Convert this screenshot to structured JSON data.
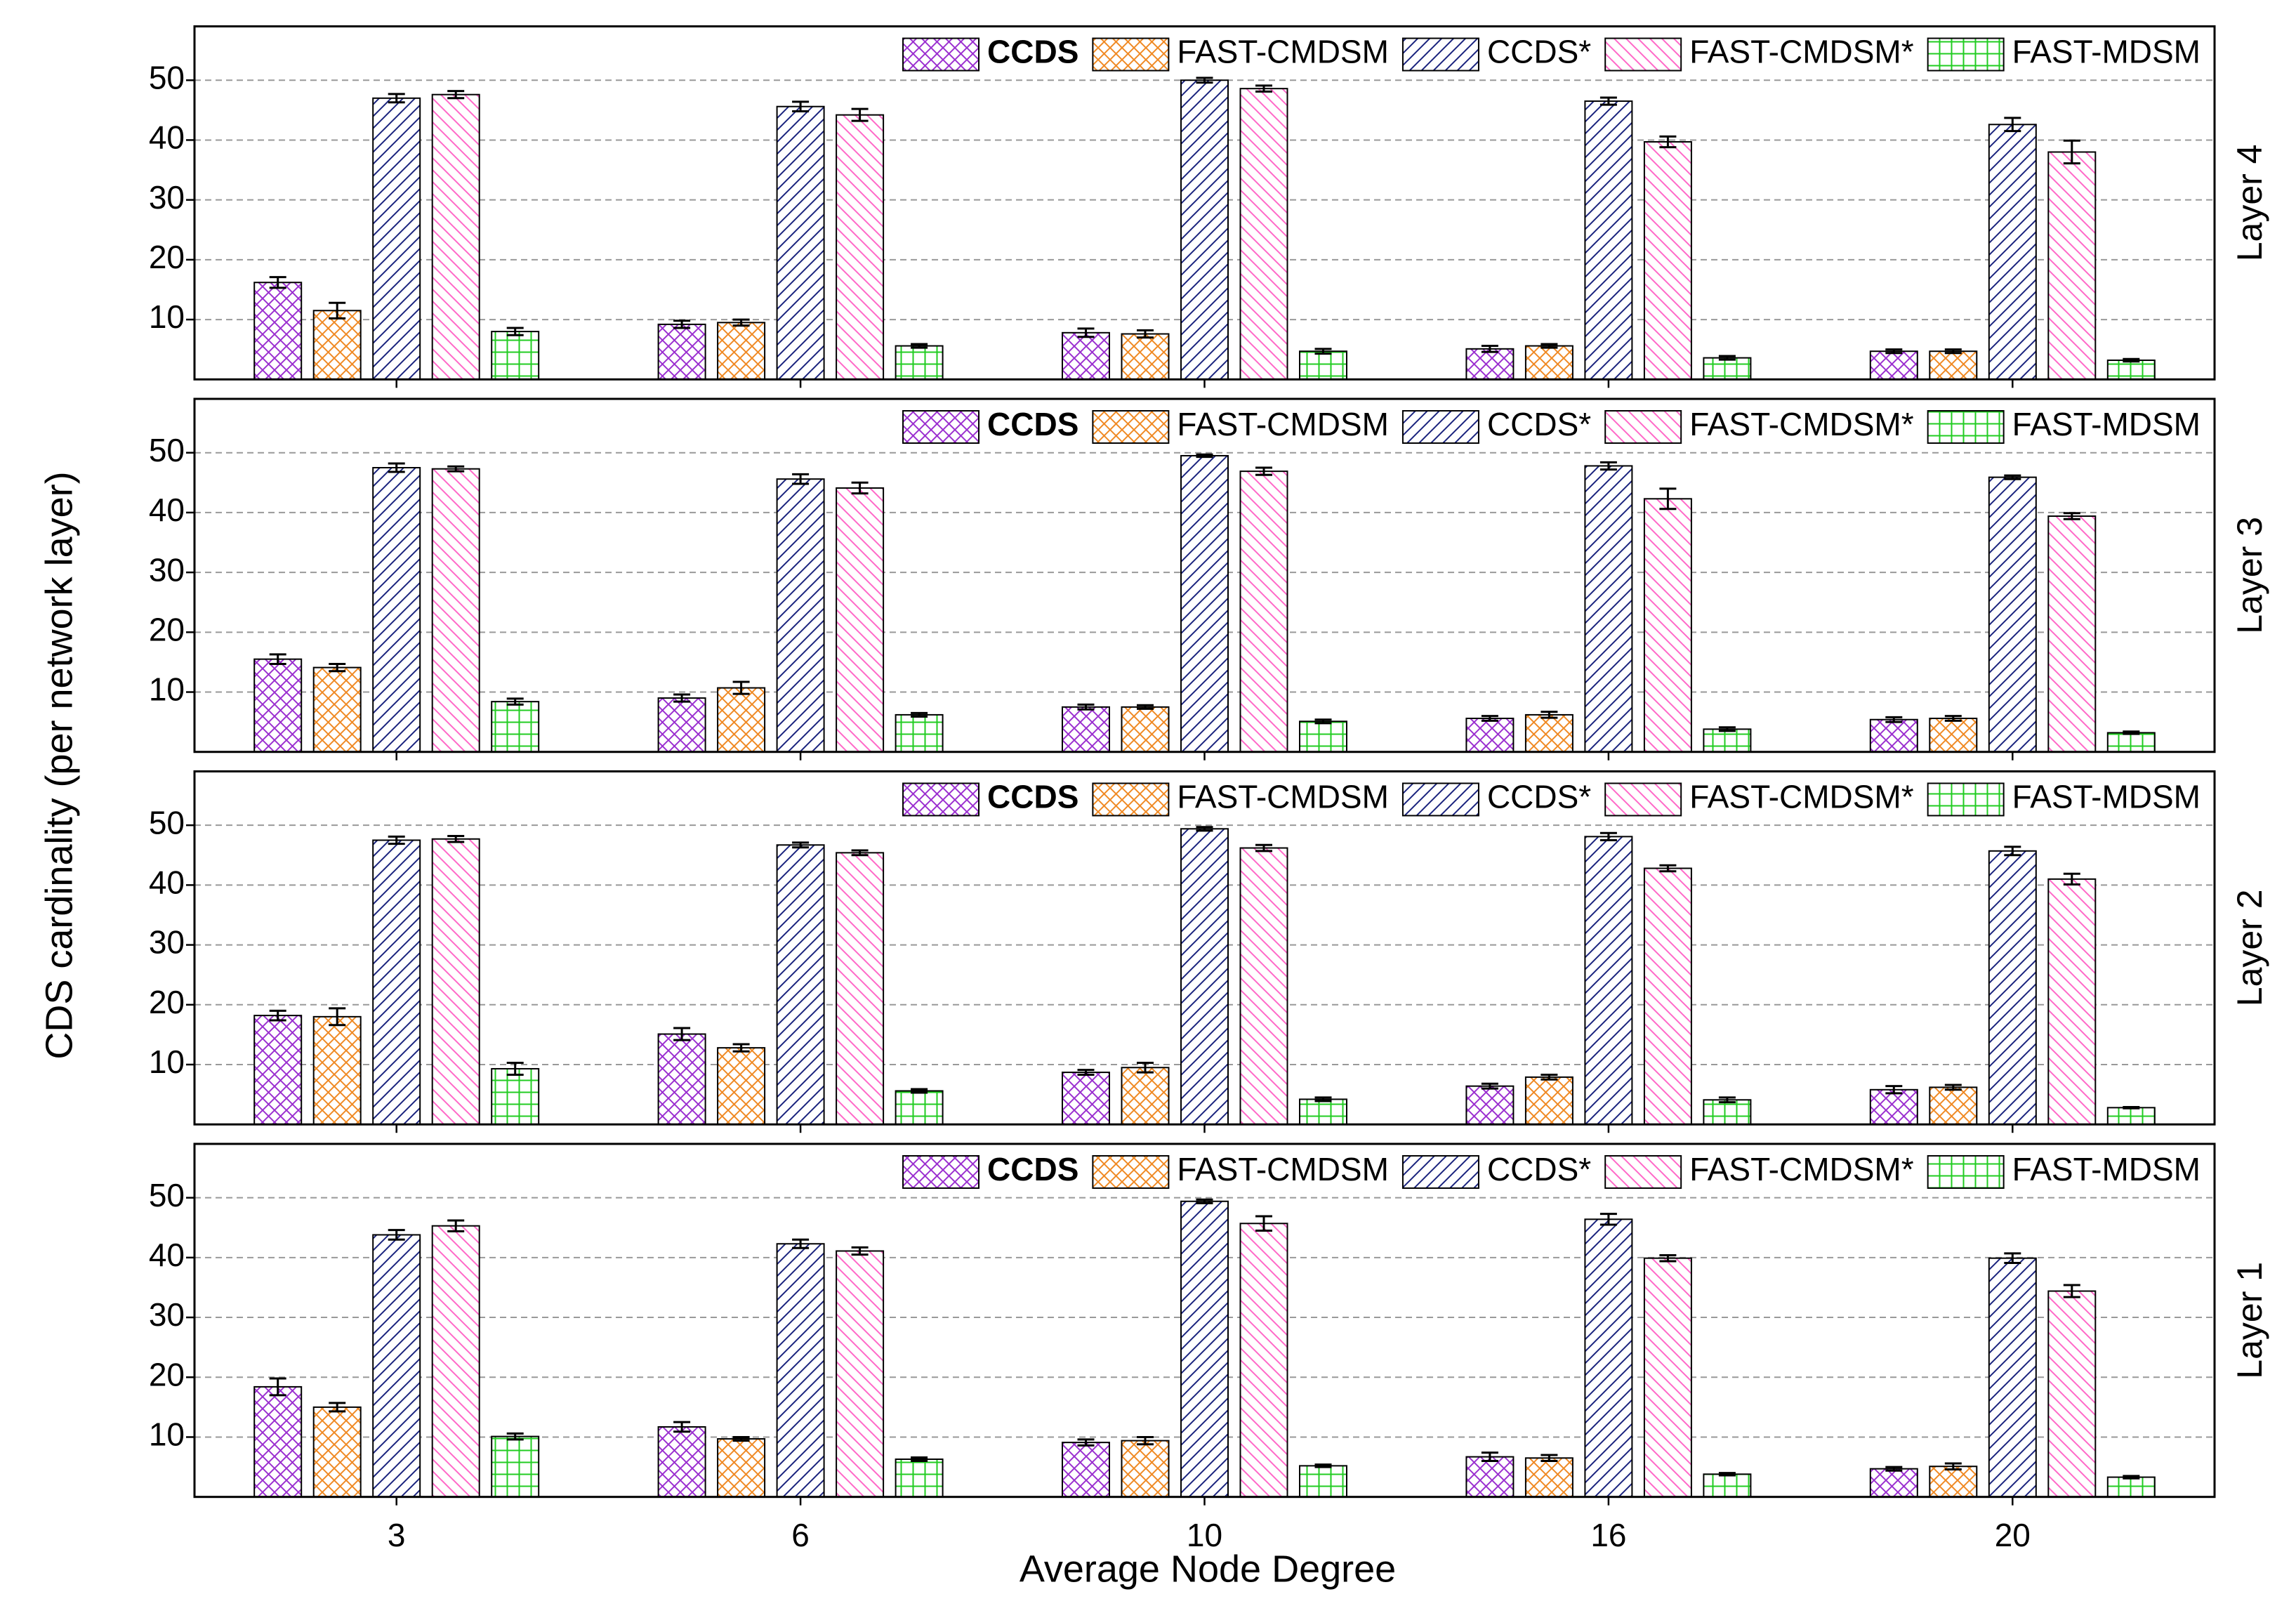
{
  "shared": {
    "categories": [
      "3",
      "6",
      "10",
      "16",
      "20"
    ],
    "xlabel": "Average Node Degree",
    "ylabel": "CDS cardinality (per network layer)"
  },
  "chart_data": [
    {
      "type": "bar",
      "title": "Layer 4",
      "ylim": [
        0,
        59
      ],
      "yticks": [
        10,
        20,
        30,
        40,
        50
      ],
      "grid": true,
      "legend": "upper right",
      "series": [
        {
          "name": "CCDS",
          "bold": true,
          "color": "#9b30d0",
          "hatch": "cross",
          "values": [
            16.2,
            9.2,
            7.8,
            5.1,
            4.7
          ],
          "errors": [
            0.9,
            0.6,
            0.7,
            0.5,
            0.3
          ]
        },
        {
          "name": "FAST-CMDSM",
          "color": "#f08a24",
          "hatch": "cross",
          "values": [
            11.5,
            9.5,
            7.6,
            5.6,
            4.7
          ],
          "errors": [
            1.3,
            0.5,
            0.6,
            0.3,
            0.3
          ]
        },
        {
          "name": "CCDS*",
          "color": "#1a237e",
          "hatch": "diag-right",
          "values": [
            47,
            45.6,
            50,
            46.5,
            42.6
          ],
          "errors": [
            0.7,
            0.8,
            0.4,
            0.6,
            1.1
          ]
        },
        {
          "name": "FAST-CMDSM*",
          "color": "#ff69c8",
          "hatch": "diag-left",
          "values": [
            47.6,
            44.2,
            48.6,
            39.7,
            38
          ],
          "errors": [
            0.6,
            1.0,
            0.5,
            0.9,
            1.9
          ]
        },
        {
          "name": "FAST-MDSM",
          "color": "#22cc22",
          "hatch": "grid",
          "values": [
            8,
            5.6,
            4.7,
            3.6,
            3.2
          ],
          "errors": [
            0.6,
            0.3,
            0.4,
            0.3,
            0.2
          ]
        }
      ]
    },
    {
      "type": "bar",
      "title": "Layer 3",
      "ylim": [
        0,
        59
      ],
      "yticks": [
        10,
        20,
        30,
        40,
        50
      ],
      "grid": true,
      "legend": "upper right",
      "series": [
        {
          "name": "CCDS",
          "bold": true,
          "color": "#9b30d0",
          "hatch": "cross",
          "values": [
            15.5,
            9,
            7.5,
            5.6,
            5.4
          ],
          "errors": [
            0.8,
            0.6,
            0.4,
            0.4,
            0.4
          ]
        },
        {
          "name": "FAST-CMDSM",
          "color": "#f08a24",
          "hatch": "cross",
          "values": [
            14.1,
            10.7,
            7.5,
            6.2,
            5.6
          ],
          "errors": [
            0.6,
            1.0,
            0.3,
            0.5,
            0.4
          ]
        },
        {
          "name": "CCDS*",
          "color": "#1a237e",
          "hatch": "diag-right",
          "values": [
            47.5,
            45.6,
            49.5,
            47.8,
            45.9
          ],
          "errors": [
            0.7,
            0.8,
            0.2,
            0.6,
            0.3
          ]
        },
        {
          "name": "FAST-CMDSM*",
          "color": "#ff69c8",
          "hatch": "diag-left",
          "values": [
            47.3,
            44.1,
            46.9,
            42.3,
            39.4
          ],
          "errors": [
            0.4,
            0.9,
            0.6,
            1.7,
            0.5
          ]
        },
        {
          "name": "FAST-MDSM",
          "color": "#22cc22",
          "hatch": "grid",
          "values": [
            8.4,
            6.2,
            5.1,
            3.8,
            3.2
          ],
          "errors": [
            0.5,
            0.3,
            0.3,
            0.3,
            0.2
          ]
        }
      ]
    },
    {
      "type": "bar",
      "title": "Layer 2",
      "ylim": [
        0,
        59
      ],
      "yticks": [
        10,
        20,
        30,
        40,
        50
      ],
      "grid": true,
      "legend": "upper right",
      "series": [
        {
          "name": "CCDS",
          "bold": true,
          "color": "#9b30d0",
          "hatch": "cross",
          "values": [
            18.2,
            15.1,
            8.7,
            6.4,
            5.8
          ],
          "errors": [
            0.8,
            1.0,
            0.4,
            0.4,
            0.6
          ]
        },
        {
          "name": "FAST-CMDSM",
          "color": "#f08a24",
          "hatch": "cross",
          "values": [
            18,
            12.8,
            9.5,
            7.9,
            6.2
          ],
          "errors": [
            1.4,
            0.6,
            0.8,
            0.4,
            0.4
          ]
        },
        {
          "name": "CCDS*",
          "color": "#1a237e",
          "hatch": "diag-right",
          "values": [
            47.5,
            46.7,
            49.4,
            48.1,
            45.7
          ],
          "errors": [
            0.6,
            0.4,
            0.3,
            0.6,
            0.7
          ]
        },
        {
          "name": "FAST-CMDSM*",
          "color": "#ff69c8",
          "hatch": "diag-left",
          "values": [
            47.7,
            45.4,
            46.2,
            42.8,
            41
          ],
          "errors": [
            0.5,
            0.4,
            0.5,
            0.5,
            0.9
          ]
        },
        {
          "name": "FAST-MDSM",
          "color": "#22cc22",
          "hatch": "grid",
          "values": [
            9.3,
            5.6,
            4.2,
            4.1,
            2.8
          ],
          "errors": [
            1.0,
            0.3,
            0.3,
            0.4,
            0.1
          ]
        }
      ]
    },
    {
      "type": "bar",
      "title": "Layer 1",
      "ylim": [
        0,
        59
      ],
      "yticks": [
        10,
        20,
        30,
        40,
        50
      ],
      "grid": true,
      "legend": "upper right",
      "xtick_labels": true,
      "series": [
        {
          "name": "CCDS",
          "bold": true,
          "color": "#9b30d0",
          "hatch": "cross",
          "values": [
            18.4,
            11.7,
            9.1,
            6.7,
            4.7
          ],
          "errors": [
            1.4,
            0.8,
            0.5,
            0.7,
            0.3
          ]
        },
        {
          "name": "FAST-CMDSM",
          "color": "#f08a24",
          "hatch": "cross",
          "values": [
            15,
            9.7,
            9.4,
            6.5,
            5.1
          ],
          "errors": [
            0.7,
            0.3,
            0.6,
            0.5,
            0.5
          ]
        },
        {
          "name": "CCDS*",
          "color": "#1a237e",
          "hatch": "diag-right",
          "values": [
            43.8,
            42.3,
            49.4,
            46.4,
            39.9
          ],
          "errors": [
            0.8,
            0.7,
            0.3,
            0.9,
            0.8
          ]
        },
        {
          "name": "FAST-CMDSM*",
          "color": "#ff69c8",
          "hatch": "diag-left",
          "values": [
            45.3,
            41.1,
            45.7,
            39.9,
            34.4
          ],
          "errors": [
            0.9,
            0.6,
            1.2,
            0.5,
            1.0
          ]
        },
        {
          "name": "FAST-MDSM",
          "color": "#22cc22",
          "hatch": "grid",
          "values": [
            10.1,
            6.3,
            5.2,
            3.8,
            3.3
          ],
          "errors": [
            0.5,
            0.3,
            0.2,
            0.2,
            0.2
          ]
        }
      ]
    }
  ]
}
